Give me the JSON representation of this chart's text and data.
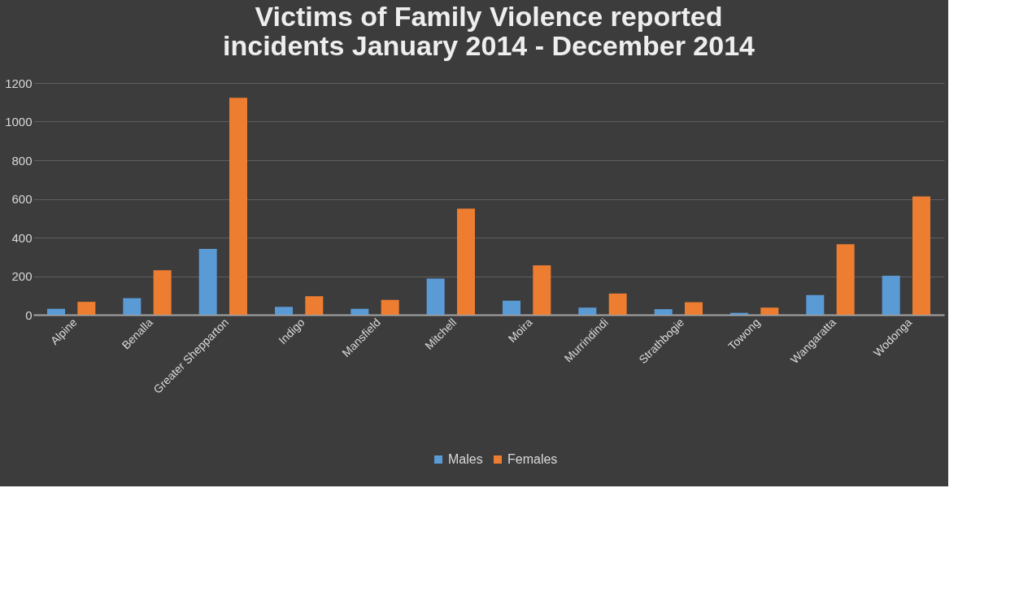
{
  "chart_data": {
    "type": "bar",
    "title": [
      "Victims  of  Family  Violence  reported",
      "incidents  January  2014 - December  2014"
    ],
    "categories": [
      "Alpine",
      "Benalla",
      "Greater Shepparton",
      "Indigo",
      "Mansfield",
      "Mitchell",
      "Moira",
      "Murrindindi",
      "Strathbogie",
      "Towong",
      "Wangaratta",
      "Wodonga"
    ],
    "series": [
      {
        "name": "Males",
        "color": "#5b9bd5",
        "values": [
          31,
          86,
          341,
          41,
          31,
          187,
          73,
          37,
          29,
          10,
          102,
          202
        ]
      },
      {
        "name": "Females",
        "color": "#ed7d31",
        "values": [
          67,
          231,
          1123,
          96,
          77,
          550,
          256,
          110,
          65,
          37,
          365,
          613
        ]
      }
    ],
    "ylim": [
      0,
      1200
    ],
    "yticks": [
      0,
      200,
      400,
      600,
      800,
      1000,
      1200
    ],
    "grid": "y",
    "legend": "bottom"
  }
}
